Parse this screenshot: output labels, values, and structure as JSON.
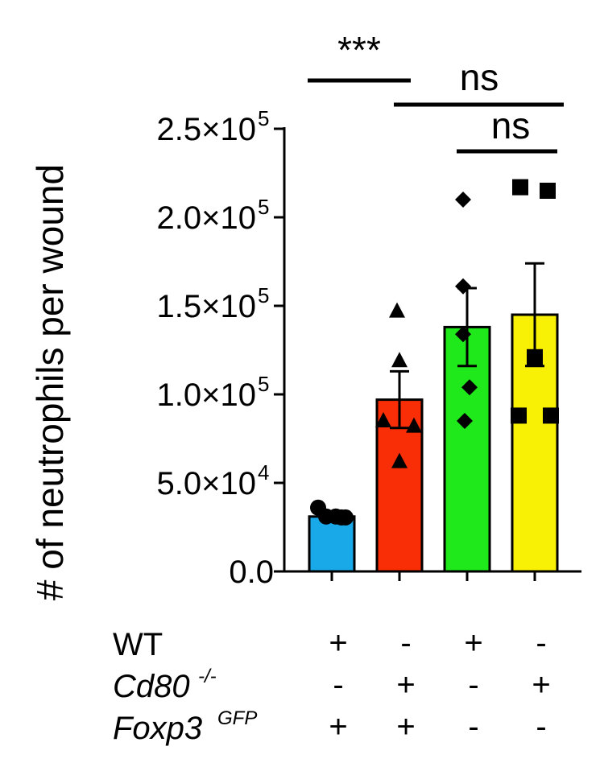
{
  "chart_data": {
    "type": "bar",
    "ylabel": "# of  neutrophils per wound",
    "ylim": [
      0,
      250000
    ],
    "yticks": [
      {
        "value": 0,
        "mantissa": "0.0",
        "exponent": ""
      },
      {
        "value": 50000,
        "mantissa": "5.0×10",
        "exponent": "4"
      },
      {
        "value": 100000,
        "mantissa": "1.0×10",
        "exponent": "5"
      },
      {
        "value": 150000,
        "mantissa": "1.5×10",
        "exponent": "5"
      },
      {
        "value": 200000,
        "mantissa": "2.0×10",
        "exponent": "5"
      },
      {
        "value": 250000,
        "mantissa": "2.5×10",
        "exponent": "5"
      }
    ],
    "bars": [
      {
        "value": 31000,
        "sem": 0,
        "color": "#1aa9e8",
        "marker": "circle",
        "points": [
          36000,
          31000,
          30500,
          31000,
          30500
        ]
      },
      {
        "value": 97000,
        "sem": 16000,
        "color": "#f92d06",
        "marker": "triangle",
        "points": [
          147000,
          119000,
          85000,
          82000,
          62000
        ]
      },
      {
        "value": 138000,
        "sem": 22000,
        "color": "#1fe81b",
        "marker": "diamond",
        "points": [
          210000,
          161000,
          134000,
          104000,
          85000
        ]
      },
      {
        "value": 145000,
        "sem": 29000,
        "color": "#f8f106",
        "marker": "square",
        "points": [
          217000,
          215000,
          121000,
          88000,
          88000
        ]
      }
    ],
    "significance": [
      {
        "label": "***",
        "from": 0,
        "to": 1
      },
      {
        "label": "ns",
        "from": 1,
        "to": 3
      },
      {
        "label": "ns",
        "from": 2,
        "to": 3
      }
    ],
    "conditions": [
      {
        "label": "WT",
        "superscript": "",
        "italic": false,
        "signs": [
          "+",
          "-",
          "+",
          "-"
        ]
      },
      {
        "label": "Cd80",
        "superscript": "-/-",
        "italic": true,
        "signs": [
          "-",
          "+",
          "-",
          "+"
        ]
      },
      {
        "label": "Foxp3",
        "superscript": "GFP",
        "italic": true,
        "signs": [
          "+",
          "+",
          "-",
          "-"
        ]
      }
    ]
  }
}
